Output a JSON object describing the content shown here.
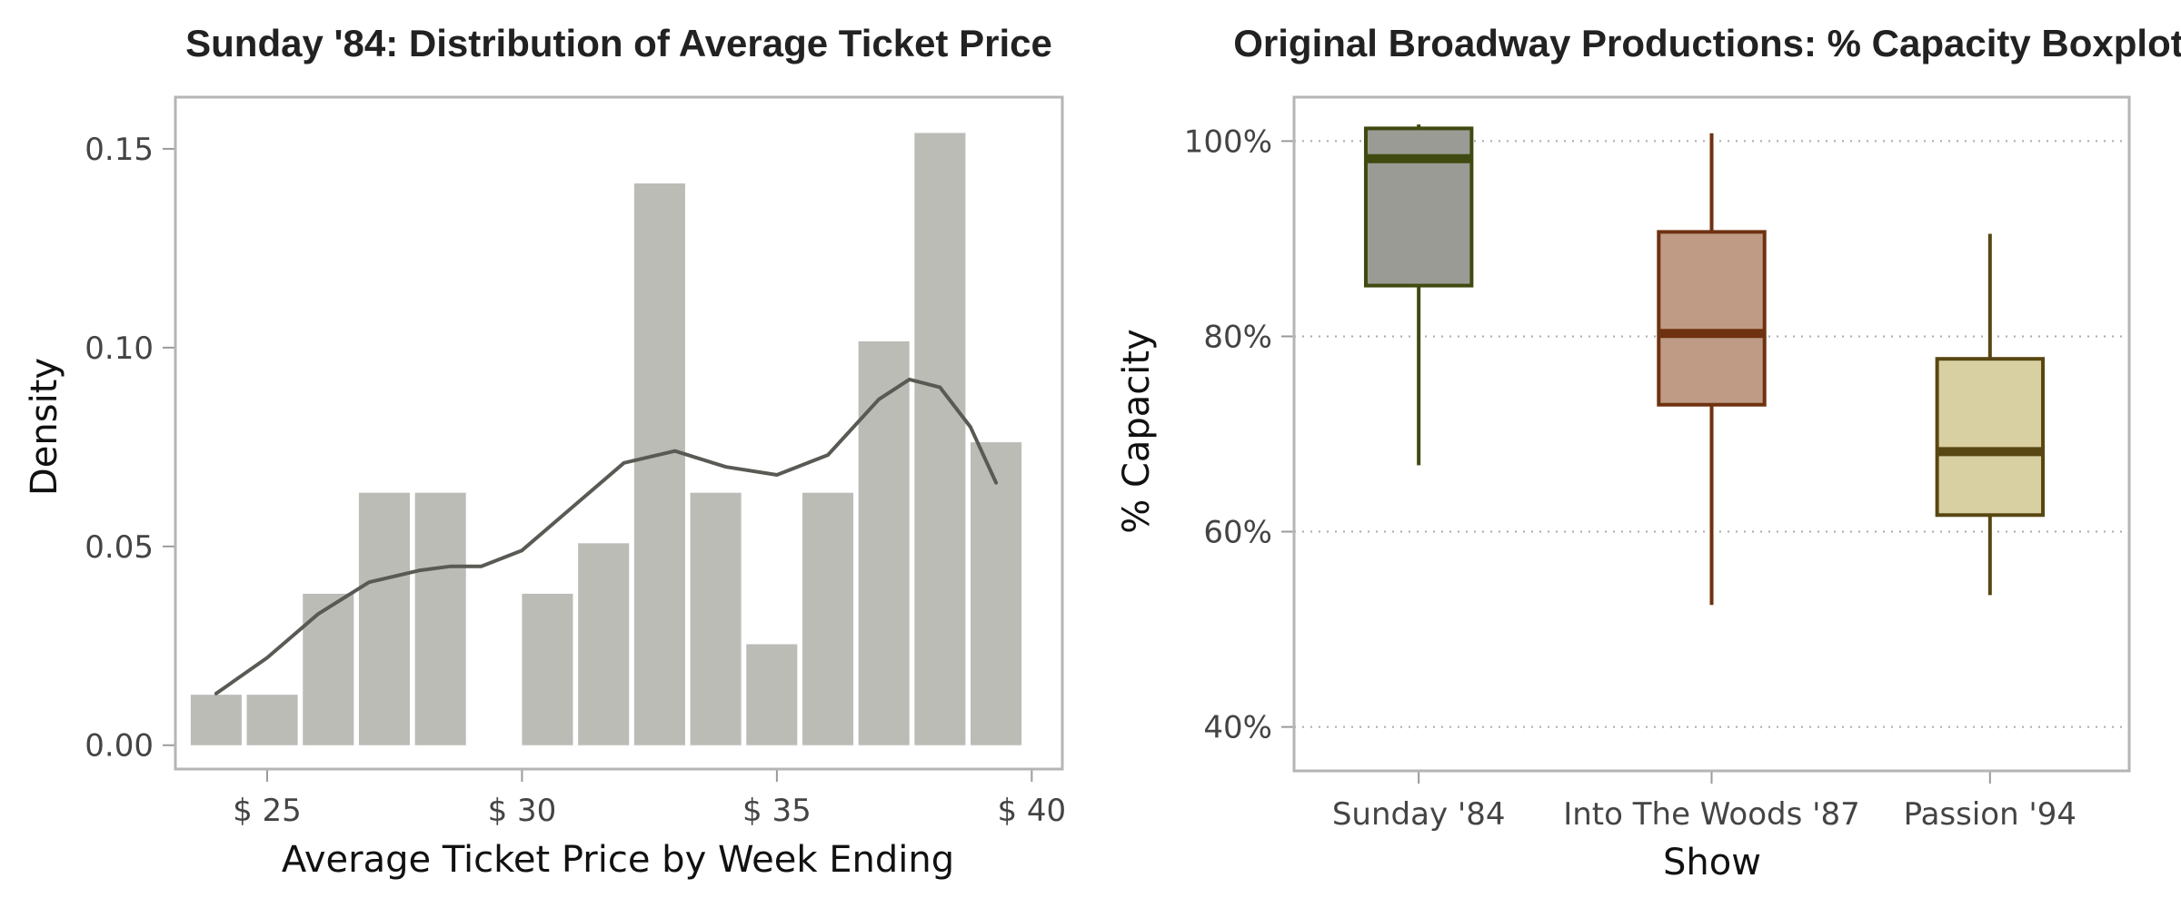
{
  "chart_data": [
    {
      "type": "bar",
      "title": "Sunday '84: Distribution of Average Ticket Price",
      "xlabel": "Average Ticket Price by Week Ending",
      "ylabel": "Density",
      "xlim": [
        23.2,
        40.6
      ],
      "ylim": [
        -0.006,
        0.163
      ],
      "x_ticks": [
        25,
        30,
        35,
        40
      ],
      "x_tick_labels": [
        "$ 25",
        "$ 30",
        "$ 35",
        "$ 40"
      ],
      "y_ticks": [
        0.0,
        0.05,
        0.1,
        0.15
      ],
      "y_tick_labels": [
        "0.00",
        "0.05",
        "0.10",
        "0.15"
      ],
      "bins": [
        {
          "x0": 23.5,
          "x1": 24.5,
          "density": 0.0127
        },
        {
          "x0": 24.6,
          "x1": 25.6,
          "density": 0.0127
        },
        {
          "x0": 25.7,
          "x1": 26.7,
          "density": 0.0381
        },
        {
          "x0": 26.8,
          "x1": 27.8,
          "density": 0.0635
        },
        {
          "x0": 27.9,
          "x1": 28.9,
          "density": 0.0635
        },
        {
          "x0": 30.0,
          "x1": 31.0,
          "density": 0.0381
        },
        {
          "x0": 31.1,
          "x1": 32.1,
          "density": 0.0508
        },
        {
          "x0": 32.2,
          "x1": 33.2,
          "density": 0.1413
        },
        {
          "x0": 33.3,
          "x1": 34.3,
          "density": 0.0635
        },
        {
          "x0": 34.4,
          "x1": 35.4,
          "density": 0.0254
        },
        {
          "x0": 35.5,
          "x1": 36.5,
          "density": 0.0635
        },
        {
          "x0": 36.6,
          "x1": 37.6,
          "density": 0.1016
        },
        {
          "x0": 37.7,
          "x1": 38.7,
          "density": 0.154
        },
        {
          "x0": 38.8,
          "x1": 39.8,
          "density": 0.0762
        }
      ],
      "density_curve": {
        "x": [
          24.0,
          25.0,
          26.0,
          27.0,
          28.0,
          28.6,
          29.2,
          30.0,
          31.0,
          32.0,
          33.0,
          34.0,
          35.0,
          36.0,
          37.0,
          37.6,
          38.2,
          38.8,
          39.3
        ],
        "y": [
          0.013,
          0.022,
          0.033,
          0.041,
          0.044,
          0.045,
          0.045,
          0.049,
          0.06,
          0.071,
          0.074,
          0.07,
          0.068,
          0.073,
          0.087,
          0.092,
          0.09,
          0.08,
          0.066
        ]
      },
      "colors": {
        "bars": "#bcbcb7",
        "curve": "#5a5a55"
      }
    },
    {
      "type": "boxplot",
      "title": "Original Broadway Productions: % Capacity Boxplot",
      "xlabel": "Show",
      "ylabel": "% Capacity",
      "ylim": [
        0.355,
        1.045
      ],
      "y_ticks": [
        0.4,
        0.6,
        0.8,
        1.0
      ],
      "y_tick_labels": [
        "40%",
        "60%",
        "80%",
        "100%"
      ],
      "grid": true,
      "boxes": [
        {
          "label": "Sunday '84",
          "whisker_low": 0.668,
          "q1": 0.852,
          "median": 0.982,
          "q3": 1.013,
          "whisker_high": 1.017,
          "fill": "#9b9b95",
          "stroke": "#3e4a10"
        },
        {
          "label": "Into The Woods '87",
          "whisker_low": 0.525,
          "q1": 0.73,
          "median": 0.803,
          "q3": 0.907,
          "whisker_high": 1.008,
          "fill": "#bf9b86",
          "stroke": "#6e3210"
        },
        {
          "label": "Passion '94",
          "whisker_low": 0.535,
          "q1": 0.617,
          "median": 0.682,
          "q3": 0.777,
          "whisker_high": 0.905,
          "fill": "#d8cfa2",
          "stroke": "#584712"
        }
      ]
    }
  ]
}
